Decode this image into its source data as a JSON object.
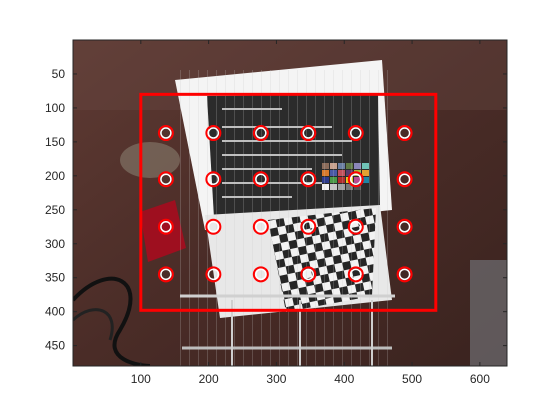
{
  "chart_data": {
    "type": "scatter",
    "title": "",
    "xlabel": "",
    "ylabel": "",
    "xlim": [
      0,
      640
    ],
    "ylim": [
      480,
      0
    ],
    "y_axis_direction": "reversed",
    "xticks": [
      100,
      200,
      300,
      400,
      500,
      600
    ],
    "yticks": [
      50,
      100,
      150,
      200,
      250,
      300,
      350,
      400,
      450
    ],
    "grid": false,
    "background": "photograph of a metal wire rack holding a printed color chart box and a checkerboard calibration pattern on a wooden table",
    "region_rect": {
      "x_range": [
        100,
        535
      ],
      "y_range": [
        80,
        398
      ],
      "color": "#ff0000"
    },
    "markers": {
      "color": "#ff0000",
      "inner_color": "#ffffff",
      "style": "circle",
      "points": [
        {
          "x": 137,
          "y": 137
        },
        {
          "x": 207,
          "y": 137
        },
        {
          "x": 277,
          "y": 137
        },
        {
          "x": 347,
          "y": 137
        },
        {
          "x": 417,
          "y": 137
        },
        {
          "x": 489,
          "y": 137
        },
        {
          "x": 137,
          "y": 205
        },
        {
          "x": 207,
          "y": 205
        },
        {
          "x": 277,
          "y": 205
        },
        {
          "x": 347,
          "y": 205
        },
        {
          "x": 417,
          "y": 205
        },
        {
          "x": 489,
          "y": 205
        },
        {
          "x": 137,
          "y": 275
        },
        {
          "x": 207,
          "y": 275
        },
        {
          "x": 277,
          "y": 275
        },
        {
          "x": 347,
          "y": 275
        },
        {
          "x": 417,
          "y": 275
        },
        {
          "x": 489,
          "y": 275
        },
        {
          "x": 137,
          "y": 345
        },
        {
          "x": 207,
          "y": 345
        },
        {
          "x": 277,
          "y": 345
        },
        {
          "x": 347,
          "y": 345
        },
        {
          "x": 417,
          "y": 345
        },
        {
          "x": 489,
          "y": 345
        }
      ]
    }
  }
}
